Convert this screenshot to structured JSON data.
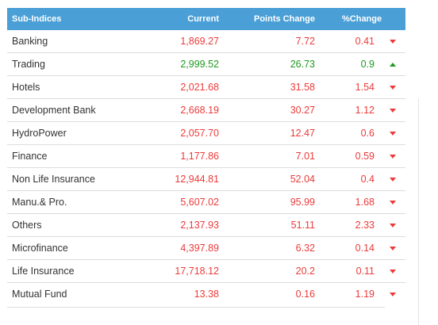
{
  "colors": {
    "header_bg": "#4a9fd6",
    "up": "#1e9a1e",
    "down": "#ec3a3a"
  },
  "header": {
    "name": "Sub-Indices",
    "current": "Current",
    "points": "Points Change",
    "pct": "%Change"
  },
  "rows": [
    {
      "name": "Banking",
      "current": "1,869.27",
      "points": "7.72",
      "pct": "0.41",
      "direction": "down",
      "icon": "triangle-down-icon"
    },
    {
      "name": "Trading",
      "current": "2,999.52",
      "points": "26.73",
      "pct": "0.9",
      "direction": "up",
      "icon": "triangle-up-icon"
    },
    {
      "name": "Hotels",
      "current": "2,021.68",
      "points": "31.58",
      "pct": "1.54",
      "direction": "down",
      "icon": "triangle-down-icon"
    },
    {
      "name": "Development Bank",
      "current": "2,668.19",
      "points": "30.27",
      "pct": "1.12",
      "direction": "down",
      "icon": "triangle-down-icon"
    },
    {
      "name": "HydroPower",
      "current": "2,057.70",
      "points": "12.47",
      "pct": "0.6",
      "direction": "down",
      "icon": "triangle-down-icon"
    },
    {
      "name": "Finance",
      "current": "1,177.86",
      "points": "7.01",
      "pct": "0.59",
      "direction": "down",
      "icon": "triangle-down-icon"
    },
    {
      "name": "Non Life Insurance",
      "current": "12,944.81",
      "points": "52.04",
      "pct": "0.4",
      "direction": "down",
      "icon": "triangle-down-icon"
    },
    {
      "name": "Manu.& Pro.",
      "current": "5,607.02",
      "points": "95.99",
      "pct": "1.68",
      "direction": "down",
      "icon": "triangle-down-icon"
    },
    {
      "name": "Others",
      "current": "2,137.93",
      "points": "51.11",
      "pct": "2.33",
      "direction": "down",
      "icon": "triangle-down-icon"
    },
    {
      "name": "Microfinance",
      "current": "4,397.89",
      "points": "6.32",
      "pct": "0.14",
      "direction": "down",
      "icon": "triangle-down-icon"
    },
    {
      "name": "Life Insurance",
      "current": "17,718.12",
      "points": "20.2",
      "pct": "0.11",
      "direction": "down",
      "icon": "triangle-down-icon"
    },
    {
      "name": "Mutual Fund",
      "current": "13.38",
      "points": "0.16",
      "pct": "1.19",
      "direction": "down",
      "icon": "triangle-down-icon"
    }
  ]
}
